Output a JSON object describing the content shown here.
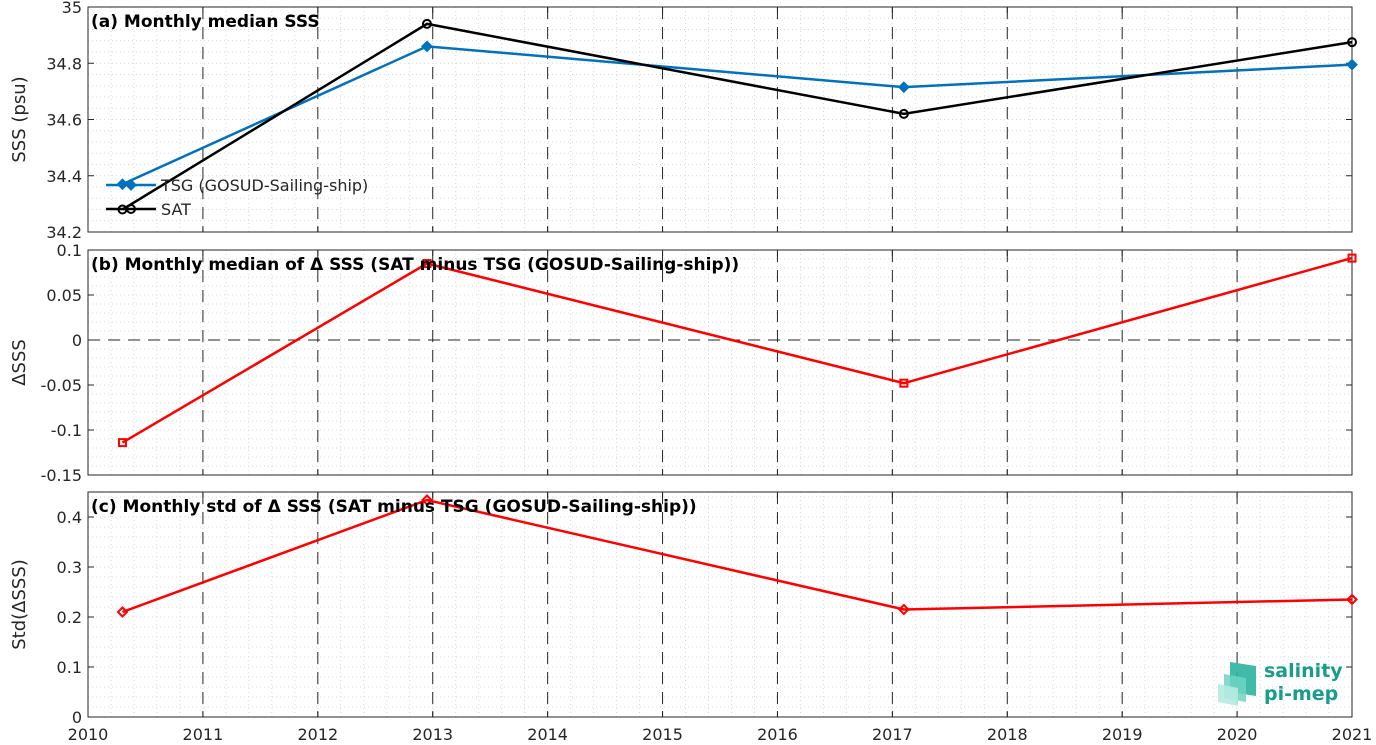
{
  "chart_data": [
    {
      "type": "line",
      "title": "(a) Monthly median SSS",
      "ylabel": "SSS (psu)",
      "xlim": [
        2010,
        2021
      ],
      "ylim": [
        34.2,
        35
      ],
      "yticks": [
        "34.2",
        "34.4",
        "34.6",
        "34.8",
        "35"
      ],
      "grid": "minor dotted, major dashed at years",
      "legend_position": "bottom-left",
      "series": [
        {
          "name": "TSG (GOSUD-Sailing-ship)",
          "color": "#0072bd",
          "marker": "diamond",
          "x": [
            2010.3,
            2012.95,
            2017.1,
            2021.0
          ],
          "y": [
            34.37,
            34.86,
            34.715,
            34.795
          ]
        },
        {
          "name": "SAT",
          "color": "#000000",
          "marker": "circle",
          "x": [
            2010.3,
            2012.95,
            2017.1,
            2021.0
          ],
          "y": [
            34.28,
            34.94,
            34.62,
            34.875
          ]
        }
      ]
    },
    {
      "type": "line",
      "title": "(b) Monthly median of Δ SSS (SAT minus TSG (GOSUD-Sailing-ship))",
      "ylabel": "ΔSSS",
      "xlim": [
        2010,
        2021
      ],
      "ylim": [
        -0.15,
        0.1
      ],
      "yticks": [
        "-0.15",
        "-0.1",
        "-0.05",
        "0",
        "0.05",
        "0.1"
      ],
      "zero_line": true,
      "series": [
        {
          "color": "#ff0000",
          "marker": "square",
          "x": [
            2010.3,
            2012.95,
            2017.1,
            2021.0
          ],
          "y": [
            -0.114,
            0.085,
            -0.048,
            0.091
          ]
        }
      ]
    },
    {
      "type": "line",
      "title": "(c) Monthly std of Δ SSS (SAT minus TSG (GOSUD-Sailing-ship))",
      "ylabel": "Std(ΔSSS)",
      "xlim": [
        2010,
        2021
      ],
      "ylim": [
        0,
        0.45
      ],
      "yticks": [
        "0",
        "0.1",
        "0.2",
        "0.3",
        "0.4"
      ],
      "xticks": [
        "2010",
        "2011",
        "2012",
        "2013",
        "2014",
        "2015",
        "2016",
        "2017",
        "2018",
        "2019",
        "2020",
        "2021"
      ],
      "series": [
        {
          "color": "#ff0000",
          "marker": "diamond",
          "x": [
            2010.3,
            2012.95,
            2017.1,
            2021.0
          ],
          "y": [
            0.21,
            0.434,
            0.215,
            0.235
          ]
        }
      ]
    }
  ],
  "logo": {
    "line1": "salinity",
    "line2": "pi-mep"
  }
}
